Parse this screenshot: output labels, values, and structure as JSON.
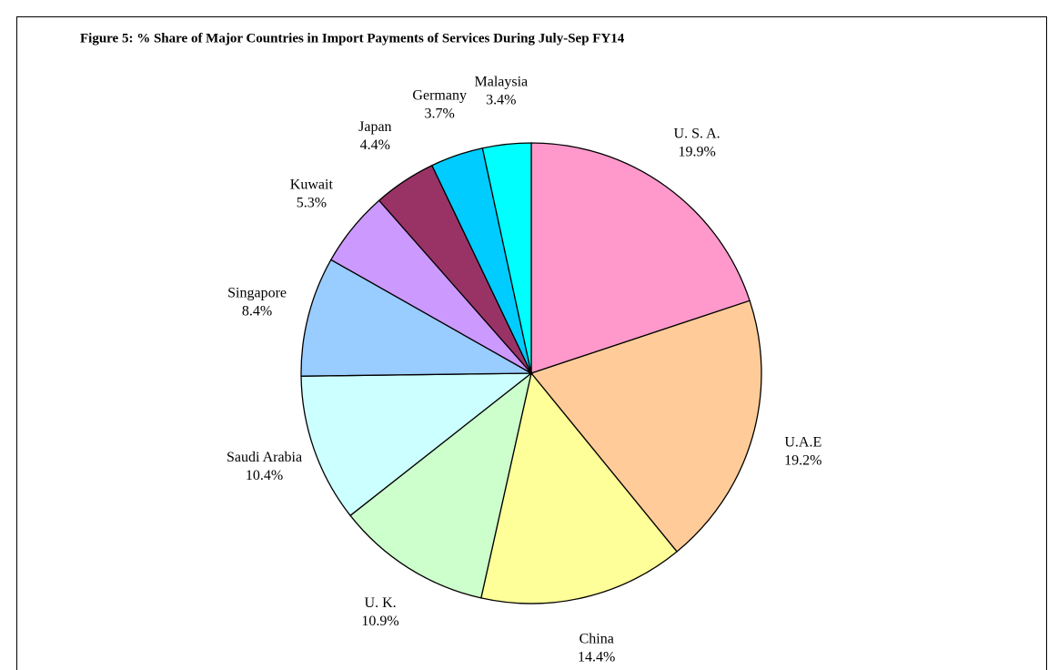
{
  "chart_data": {
    "type": "pie",
    "title": "Figure 5: % Share of Major Countries in Import Payments  of Services During July-Sep FY14",
    "categories": [
      "U. S. A.",
      "U.A.E",
      "China",
      "U. K.",
      "Saudi Arabia",
      "Singapore",
      "Kuwait",
      "Japan",
      "Germany",
      "Malaysia"
    ],
    "values": [
      19.9,
      19.2,
      14.4,
      10.9,
      10.4,
      8.4,
      5.3,
      4.4,
      3.7,
      3.4
    ],
    "value_labels": [
      "19.9%",
      "19.2%",
      "14.4%",
      "10.9%",
      "10.4%",
      "8.4%",
      "5.3%",
      "4.4%",
      "3.7%",
      "3.4%"
    ],
    "colors": [
      "#ff99cc",
      "#ffcc99",
      "#ffff99",
      "#ccffcc",
      "#ccffff",
      "#99ccff",
      "#cc99ff",
      "#993366",
      "#00ccff",
      "#00ffff"
    ]
  }
}
